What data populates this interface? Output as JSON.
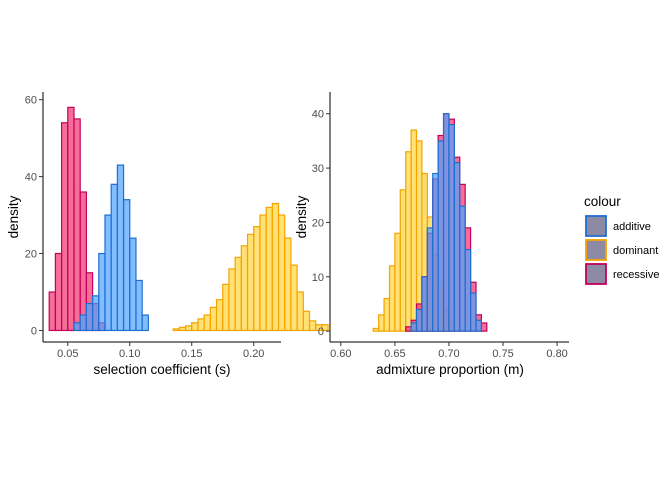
{
  "chart_data": [
    {
      "type": "histogram",
      "xlabel": "selection coefficient (s)",
      "ylabel": "density",
      "xlim": [
        0.03,
        0.222
      ],
      "ylim": [
        -3,
        62
      ],
      "xticks": [
        0.05,
        0.1,
        0.15,
        0.2
      ],
      "xtick_labels": [
        "0.05",
        "0.10",
        "0.15",
        "0.20"
      ],
      "yticks": [
        0,
        20,
        40,
        60
      ],
      "ytick_labels": [
        "0",
        "20",
        "40",
        "60"
      ],
      "grid": false,
      "bin_width": 0.005,
      "series": [
        {
          "name": "recessive",
          "bin_start": 0.035,
          "values": [
            10,
            20,
            54,
            58,
            55,
            36,
            15,
            7,
            2
          ]
        },
        {
          "name": "additive",
          "bin_start": 0.055,
          "values": [
            2,
            4,
            7,
            9,
            20,
            30,
            38,
            43,
            34,
            24,
            13,
            4
          ]
        },
        {
          "name": "dominant",
          "bin_start": 0.135,
          "values": [
            0.4,
            0.8,
            1.2,
            2,
            3,
            4,
            6,
            8,
            12,
            16,
            19,
            22,
            25,
            27,
            30,
            32,
            33,
            30,
            24,
            17,
            10,
            5,
            2.5,
            1.5,
            1.5
          ]
        }
      ]
    },
    {
      "type": "histogram",
      "xlabel": "admixture proportion (m)",
      "ylabel": "density",
      "xlim": [
        0.59,
        0.811
      ],
      "ylim": [
        -2,
        44
      ],
      "xticks": [
        0.6,
        0.65,
        0.7,
        0.75,
        0.8
      ],
      "xtick_labels": [
        "0.60",
        "0.65",
        "0.70",
        "0.75",
        "0.80"
      ],
      "yticks": [
        0,
        10,
        20,
        30,
        40
      ],
      "ytick_labels": [
        "0",
        "10",
        "20",
        "30",
        "40"
      ],
      "grid": false,
      "bin_width": 0.005,
      "series": [
        {
          "name": "dominant",
          "bin_start": 0.63,
          "values": [
            0.5,
            3,
            6,
            12,
            18,
            26,
            33,
            37,
            35,
            29,
            21,
            14,
            8,
            4,
            2
          ]
        },
        {
          "name": "recessive",
          "bin_start": 0.66,
          "values": [
            0.8,
            2,
            5,
            10,
            18,
            28,
            36,
            40,
            39,
            32,
            27,
            19,
            9,
            3,
            1.5
          ]
        },
        {
          "name": "additive",
          "bin_start": 0.665,
          "values": [
            1.5,
            4,
            10,
            19,
            29,
            35,
            40,
            38,
            31,
            23,
            15,
            7,
            2
          ]
        }
      ]
    }
  ],
  "legend": {
    "title": "colour",
    "placement": "right",
    "items": [
      {
        "label": "additive",
        "key": "additive"
      },
      {
        "label": "dominant",
        "key": "dominant"
      },
      {
        "label": "recessive",
        "key": "recessive"
      }
    ]
  },
  "colors": {
    "additive": {
      "fill": "#4da3ff",
      "stroke": "#1f6fd1"
    },
    "dominant": {
      "fill": "#ffd43b",
      "stroke": "#f5a300"
    },
    "recessive": {
      "fill": "#f0306d",
      "stroke": "#c4005a"
    },
    "legend_key_fill": "#8d8aa6",
    "fill_opacity": 0.7
  }
}
